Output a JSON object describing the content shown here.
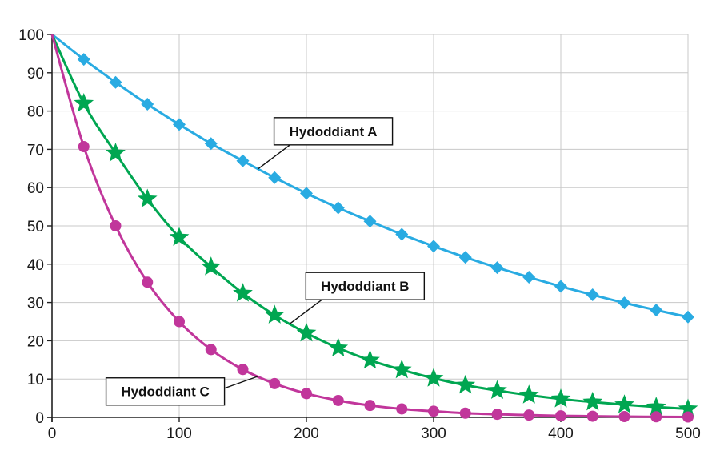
{
  "chart_data": {
    "type": "line",
    "title": "",
    "xlabel": "",
    "ylabel": "",
    "xlim": [
      0,
      500
    ],
    "ylim": [
      0,
      100
    ],
    "x_ticks": [
      0,
      100,
      200,
      300,
      400,
      500
    ],
    "y_ticks": [
      0,
      10,
      20,
      30,
      40,
      50,
      60,
      70,
      80,
      90,
      100
    ],
    "grid": true,
    "x": [
      0,
      25,
      50,
      75,
      100,
      125,
      150,
      175,
      200,
      225,
      250,
      275,
      300,
      325,
      350,
      375,
      400,
      425,
      450,
      475,
      500
    ],
    "series": [
      {
        "name": "Hydoddiant A",
        "color": "#29abe2",
        "marker": "diamond",
        "values": [
          100,
          93.5,
          87.5,
          81.8,
          76.5,
          71.5,
          67,
          62.6,
          58.5,
          54.7,
          51.2,
          47.8,
          44.7,
          41.8,
          39.1,
          36.6,
          34.2,
          32,
          29.9,
          28,
          26.2
        ]
      },
      {
        "name": "Hydoddiant B",
        "color": "#00a651",
        "marker": "star",
        "values": [
          100,
          82,
          69,
          57,
          47,
          39.3,
          32.4,
          26.7,
          22,
          18.1,
          14.9,
          12.4,
          10.2,
          8.4,
          7,
          5.8,
          4.8,
          4,
          3.3,
          2.7,
          2.2
        ]
      },
      {
        "name": "Hydoddiant C",
        "color": "#c1369b",
        "marker": "circle",
        "values": [
          100,
          70.7,
          50,
          35.3,
          25,
          17.7,
          12.5,
          8.8,
          6.2,
          4.4,
          3.1,
          2.2,
          1.6,
          1.1,
          0.8,
          0.6,
          0.4,
          0.3,
          0.2,
          0.15,
          0.1
        ]
      }
    ],
    "annotations": [
      {
        "series": 0,
        "text": "Hydoddiant A",
        "anchor_x": 162,
        "placement": "above-right"
      },
      {
        "series": 1,
        "text": "Hydoddiant B",
        "anchor_x": 187,
        "placement": "above-right"
      },
      {
        "series": 2,
        "text": "Hydoddiant C",
        "anchor_x": 162,
        "placement": "below-left"
      }
    ]
  }
}
